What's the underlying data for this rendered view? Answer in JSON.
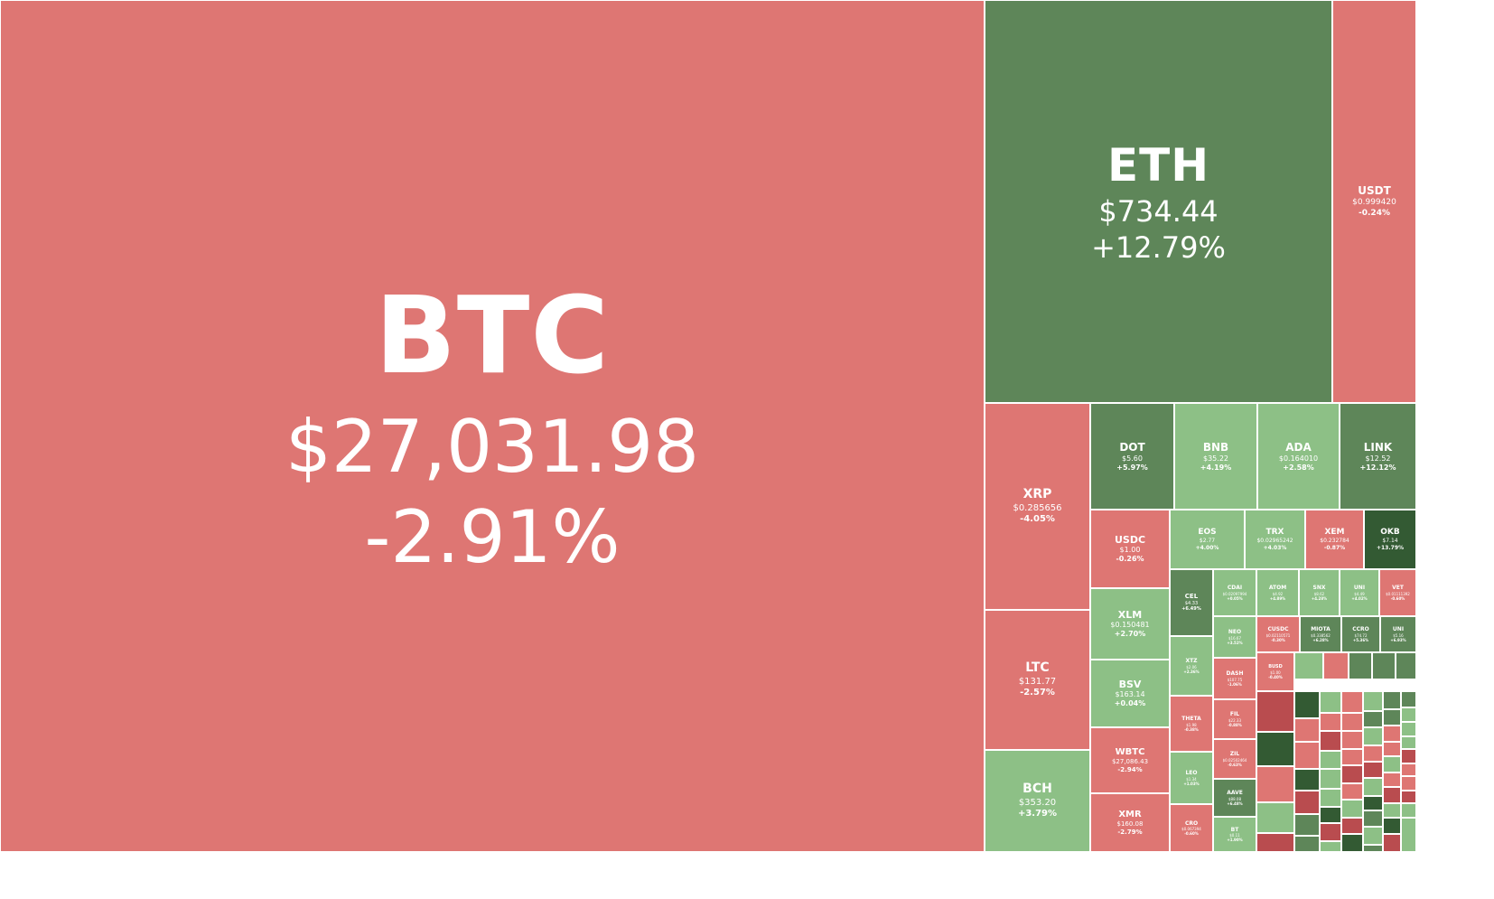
{
  "chart_data": {
    "type": "treemap",
    "title": "",
    "colors": {
      "down": "#de7673",
      "down_strong": "#b94c4f",
      "up_light": "#8dc086",
      "up": "#5e8659",
      "up_strong": "#335a33"
    },
    "tiles": [
      {
        "symbol": "BTC",
        "price": "$27,031.98",
        "change": "-2.91%",
        "change_value": -2.91
      },
      {
        "symbol": "ETH",
        "price": "$734.44",
        "change": "+12.79%",
        "change_value": 12.79
      },
      {
        "symbol": "USDT",
        "price": "$0.999420",
        "change": "-0.24%",
        "change_value": -0.24
      },
      {
        "symbol": "XRP",
        "price": "$0.285656",
        "change": "-4.05%",
        "change_value": -4.05
      },
      {
        "symbol": "LTC",
        "price": "$131.77",
        "change": "-2.57%",
        "change_value": -2.57
      },
      {
        "symbol": "BCH",
        "price": "$353.20",
        "change": "+3.79%",
        "change_value": 3.79
      },
      {
        "symbol": "DOT",
        "price": "$5.60",
        "change": "+5.97%",
        "change_value": 5.97
      },
      {
        "symbol": "BNB",
        "price": "$35.22",
        "change": "+4.19%",
        "change_value": 4.19
      },
      {
        "symbol": "ADA",
        "price": "$0.164010",
        "change": "+2.58%",
        "change_value": 2.58
      },
      {
        "symbol": "LINK",
        "price": "$12.52",
        "change": "+12.12%",
        "change_value": 12.12
      },
      {
        "symbol": "USDC",
        "price": "$1.00",
        "change": "-0.26%",
        "change_value": -0.26
      },
      {
        "symbol": "XLM",
        "price": "$0.150481",
        "change": "+2.70%",
        "change_value": 2.7
      },
      {
        "symbol": "BSV",
        "price": "$163.14",
        "change": "+0.04%",
        "change_value": 0.04
      },
      {
        "symbol": "WBTC",
        "price": "$27,086.43",
        "change": "-2.94%",
        "change_value": -2.94
      },
      {
        "symbol": "XMR",
        "price": "$160.08",
        "change": "-2.79%",
        "change_value": -2.79
      },
      {
        "symbol": "EOS",
        "price": "$2.77",
        "change": "+4.00%",
        "change_value": 4.0
      },
      {
        "symbol": "TRX",
        "price": "$0.02965242",
        "change": "+4.03%",
        "change_value": 4.03
      },
      {
        "symbol": "XEM",
        "price": "$0.232784",
        "change": "-0.87%",
        "change_value": -0.87
      },
      {
        "symbol": "OKB",
        "price": "$7.14",
        "change": "+13.79%",
        "change_value": 13.79
      },
      {
        "symbol": "CEL",
        "price": "$4.33",
        "change": "+6.49%",
        "change_value": 6.49
      },
      {
        "symbol": "CDAI",
        "price": "$0.02097994",
        "change": "+0.05%",
        "change_value": 0.05
      },
      {
        "symbol": "ATOM",
        "price": "$4.92",
        "change": "+4.89%",
        "change_value": 4.89
      },
      {
        "symbol": "SNX",
        "price": "$8.62",
        "change": "+4.28%",
        "change_value": 4.28
      },
      {
        "symbol": "UNI",
        "price": "$4.49",
        "change": "+4.02%",
        "change_value": 4.02
      },
      {
        "symbol": "VET",
        "price": "$0.01111392",
        "change": "-0.60%",
        "change_value": -0.6
      },
      {
        "symbol": "NEO",
        "price": "$16.67",
        "change": "+3.52%",
        "change_value": 3.52
      },
      {
        "symbol": "CUSDC",
        "price": "$0.02110571",
        "change": "-0.30%",
        "change_value": -0.3
      },
      {
        "symbol": "MIOTA",
        "price": "$0.338562",
        "change": "+6.28%",
        "change_value": 6.28
      },
      {
        "symbol": "CCRO",
        "price": "$74.72",
        "change": "+5.36%",
        "change_value": 5.36
      },
      {
        "symbol": "UNI",
        "price": "$5.16",
        "change": "+6.93%",
        "change_value": 6.93
      },
      {
        "symbol": "XTZ",
        "price": "$2.06",
        "change": "+2.36%",
        "change_value": 2.36
      },
      {
        "symbol": "BUSD",
        "price": "$1.00",
        "change": "-0.40%",
        "change_value": -0.4
      },
      {
        "symbol": "DASH",
        "price": "$107.75",
        "change": "-1.06%",
        "change_value": -1.06
      },
      {
        "symbol": "THETA",
        "price": "$1.98",
        "change": "-0.38%",
        "change_value": -0.38
      },
      {
        "symbol": "FIL",
        "price": "$22.33",
        "change": "-0.88%",
        "change_value": -0.88
      },
      {
        "symbol": "ZIL",
        "price": "$0.02502464",
        "change": "-0.63%",
        "change_value": -0.63
      },
      {
        "symbol": "LEO",
        "price": "$1.34",
        "change": "+1.03%",
        "change_value": 1.03
      },
      {
        "symbol": "AAVE",
        "price": "$88.08",
        "change": "+6.48%",
        "change_value": 6.48
      },
      {
        "symbol": "CRO",
        "price": "$0.067394",
        "change": "-0.60%",
        "change_value": -0.6
      },
      {
        "symbol": "BT",
        "price": "$0.11",
        "change": "+1.90%",
        "change_value": 1.9
      }
    ]
  }
}
